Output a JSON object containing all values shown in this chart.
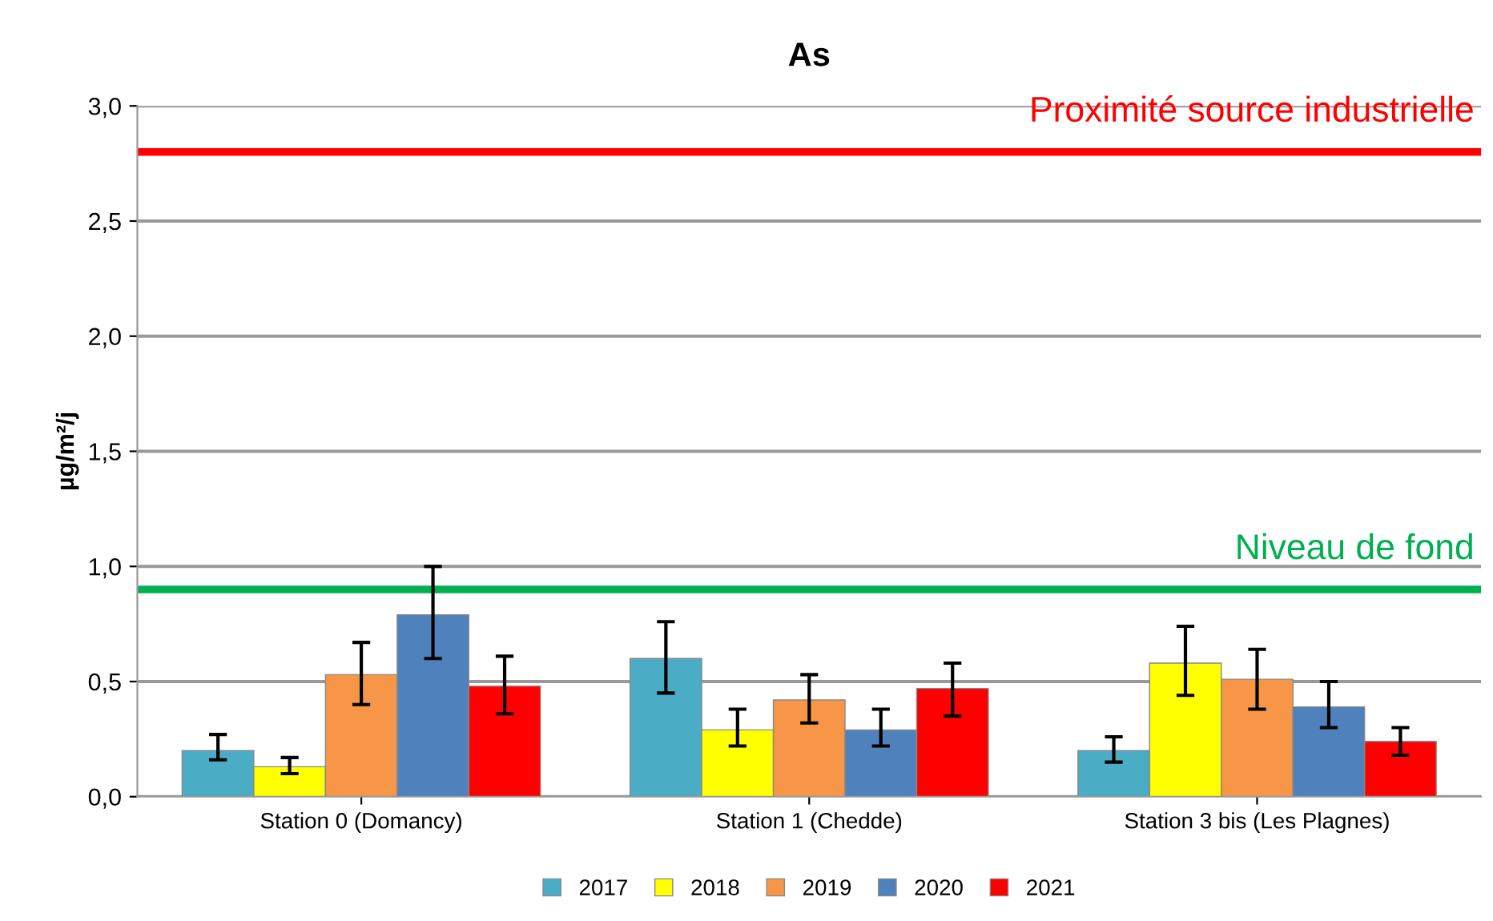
{
  "chart_data": {
    "type": "bar",
    "title": "As",
    "ylabel": "µg/m²/j",
    "categories": [
      "Station 0 (Domancy)",
      "Station 1 (Chedde)",
      "Station 3 bis (Les Plagnes)"
    ],
    "series": [
      {
        "name": "2017",
        "color": "#4bacc6",
        "values": [
          0.2,
          0.6,
          0.2
        ],
        "errors": [
          [
            0.16,
            0.27
          ],
          [
            0.45,
            0.76
          ],
          [
            0.15,
            0.26
          ]
        ]
      },
      {
        "name": "2018",
        "color": "#ffff00",
        "values": [
          0.13,
          0.29,
          0.58
        ],
        "errors": [
          [
            0.1,
            0.17
          ],
          [
            0.22,
            0.38
          ],
          [
            0.44,
            0.74
          ]
        ]
      },
      {
        "name": "2019",
        "color": "#f79646",
        "values": [
          0.53,
          0.42,
          0.51
        ],
        "errors": [
          [
            0.4,
            0.67
          ],
          [
            0.32,
            0.53
          ],
          [
            0.38,
            0.64
          ]
        ]
      },
      {
        "name": "2020",
        "color": "#4f81bd",
        "values": [
          0.79,
          0.29,
          0.39
        ],
        "errors": [
          [
            0.6,
            1.0
          ],
          [
            0.22,
            0.38
          ],
          [
            0.3,
            0.5
          ]
        ]
      },
      {
        "name": "2021",
        "color": "#ff0000",
        "values": [
          0.48,
          0.47,
          0.24
        ],
        "errors": [
          [
            0.36,
            0.61
          ],
          [
            0.35,
            0.58
          ],
          [
            0.18,
            0.3
          ]
        ]
      }
    ],
    "ylim": [
      0,
      3
    ],
    "yticks": [
      {
        "value": 0,
        "label": "0,0"
      },
      {
        "value": 0.5,
        "label": "0,5"
      },
      {
        "value": 1,
        "label": "1,0"
      },
      {
        "value": 1.5,
        "label": "1,5"
      },
      {
        "value": 2,
        "label": "2,0"
      },
      {
        "value": 2.5,
        "label": "2,5"
      },
      {
        "value": 3,
        "label": "3,0"
      }
    ],
    "ref_lines": [
      {
        "axis": "y",
        "value": 2.8,
        "label": "Proximité source industrielle",
        "color": "#ff0000"
      },
      {
        "axis": "y",
        "value": 0.9,
        "label": "Niveau de fond",
        "color": "#00b050"
      }
    ],
    "grid": "y",
    "legend": "bottom"
  }
}
